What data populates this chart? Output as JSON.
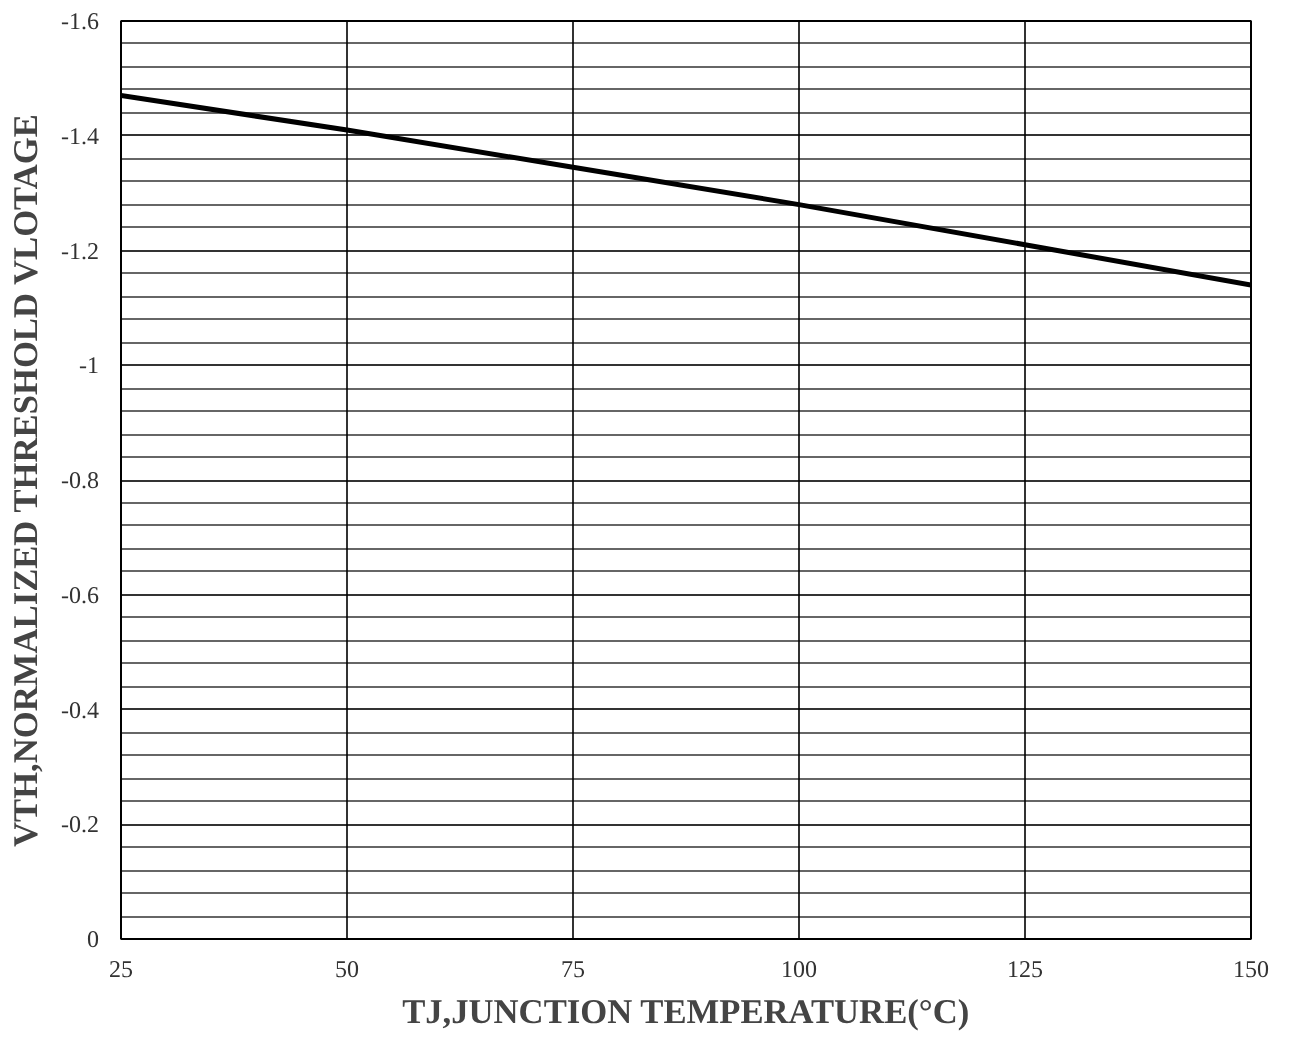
{
  "chart_data": {
    "type": "line",
    "xlabel": "TJ,JUNCTION TEMPERATURE(°C)",
    "ylabel": "VTH,NORMALIZED THRESHOLD VLOTAGE",
    "x": [
      25,
      50,
      75,
      100,
      125,
      150
    ],
    "series": [
      {
        "color": "#000000",
        "values": [
          -1.47,
          -1.41,
          -1.345,
          -1.28,
          -1.21,
          -1.14
        ]
      }
    ],
    "xlim": [
      25,
      150
    ],
    "ylim": [
      0,
      -1.6
    ],
    "xticks": [
      25,
      50,
      75,
      100,
      125,
      150
    ],
    "yticks": [
      0,
      -0.2,
      -0.4,
      -0.6,
      -0.8,
      -1,
      -1.2,
      -1.4,
      -1.6
    ],
    "grid": true,
    "marker": "none",
    "line_style": "solid"
  }
}
